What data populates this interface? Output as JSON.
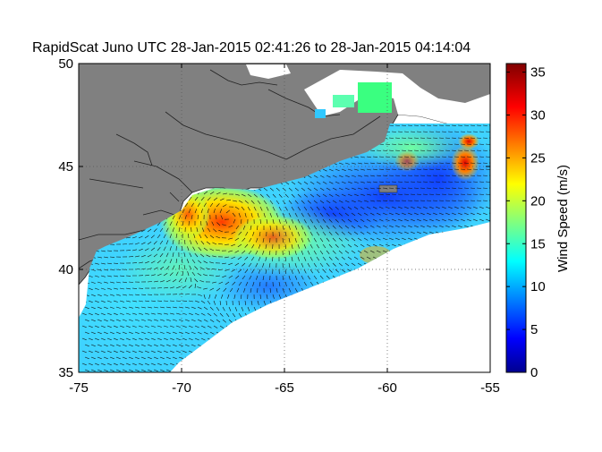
{
  "chart_data": {
    "type": "heatmap",
    "title": "RapidScat Juno UTC 28-Jan-2015 02:41:26 to 28-Jan-2015 04:14:04",
    "xlabel": "",
    "ylabel": "",
    "xlim": [
      -75,
      -55
    ],
    "ylim": [
      35,
      50
    ],
    "x_ticks": [
      "-75",
      "-70",
      "-65",
      "-60",
      "-55"
    ],
    "y_ticks": [
      "35",
      "40",
      "45",
      "50"
    ],
    "grid": true,
    "colorbar": {
      "label": "Wind Speed (m/s)",
      "range": [
        0,
        36
      ],
      "ticks": [
        "0",
        "5",
        "10",
        "15",
        "20",
        "25",
        "30",
        "35"
      ],
      "colormap": "jet"
    },
    "land_color": "#808080",
    "nodata_color": "#ffffff",
    "features": [
      {
        "name": "storm_center",
        "lon": -67.7,
        "lat": 42.6,
        "speed": 28
      },
      {
        "name": "max_wind",
        "lon": -56.3,
        "lat": 45.5,
        "speed": 32
      }
    ]
  }
}
